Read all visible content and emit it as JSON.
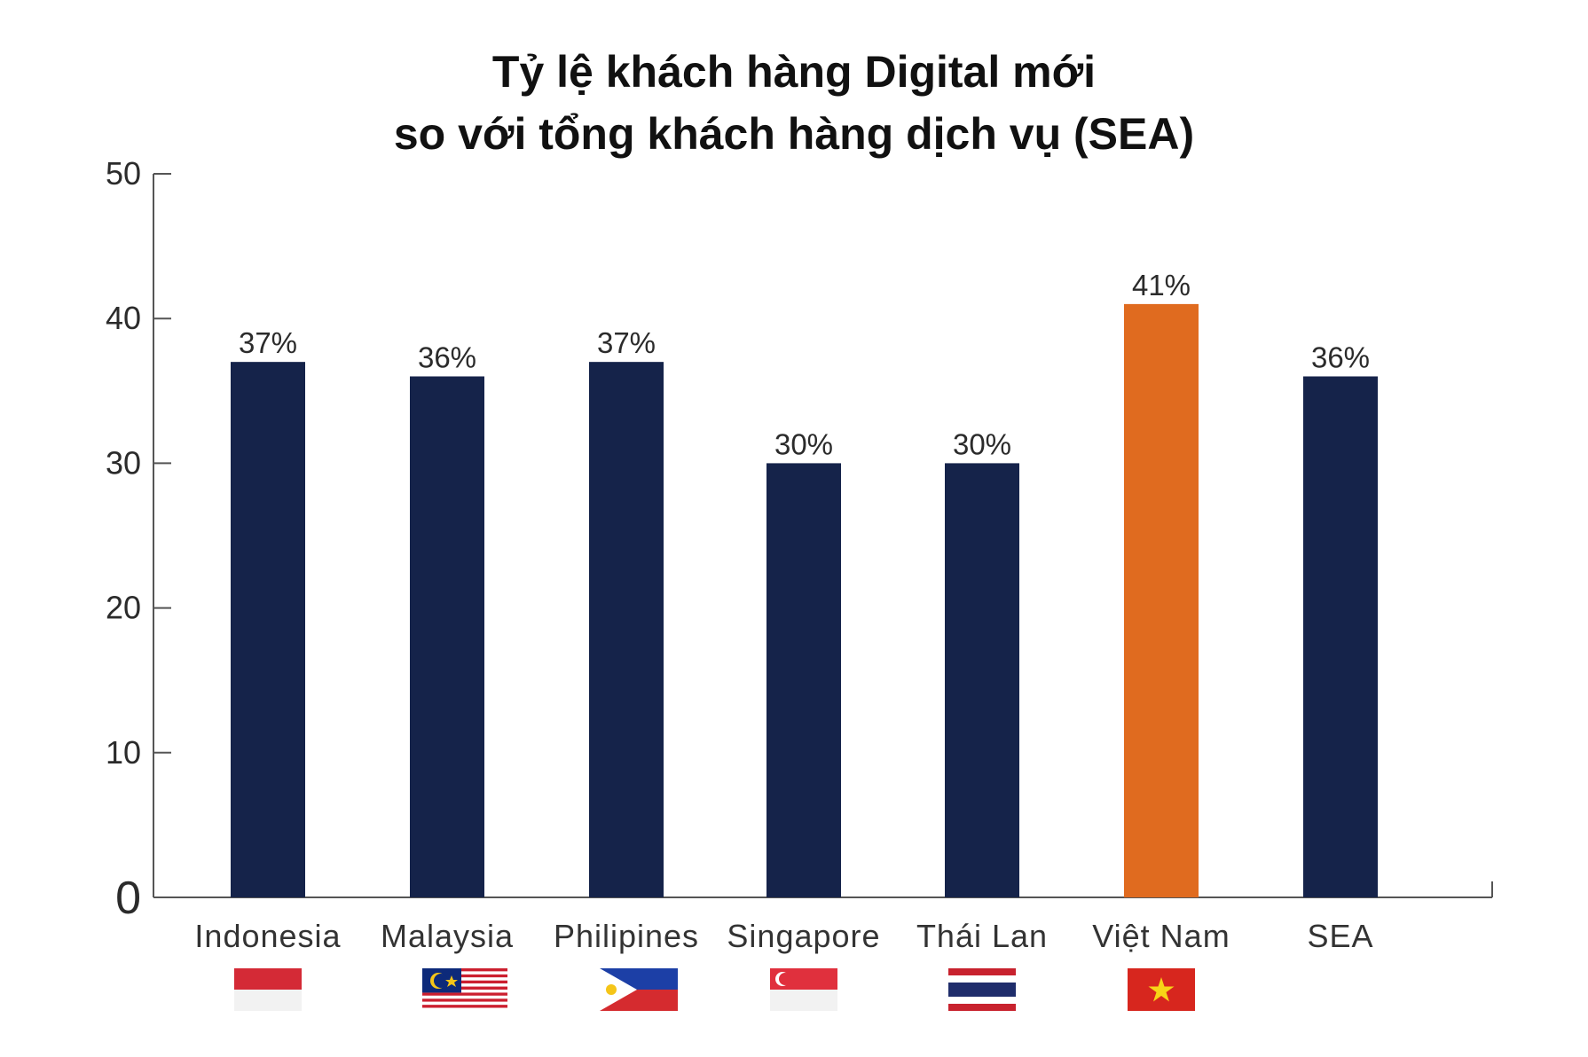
{
  "chart_data": {
    "type": "bar",
    "title_lines": [
      "Tỷ lệ khách hàng Digital mới",
      "so với tổng khách hàng dịch vụ (SEA)"
    ],
    "categories": [
      "Indonesia",
      "Malaysia",
      "Philipines",
      "Singapore",
      "Thái Lan",
      "Việt Nam",
      "SEA"
    ],
    "values": [
      37,
      36,
      37,
      30,
      30,
      41,
      36
    ],
    "data_labels": [
      "37%",
      "36%",
      "37%",
      "30%",
      "30%",
      "41%",
      "36%"
    ],
    "ylim": [
      0,
      50
    ],
    "yticks": [
      0,
      10,
      20,
      30,
      40,
      50
    ],
    "grid": false,
    "legend": "none",
    "colors": {
      "bar": "#15234a",
      "highlight": "#e06b1f",
      "axis": "#555555"
    },
    "highlight_category": "Việt Nam",
    "flag_icons": [
      "indonesia-flag-icon",
      "malaysia-flag-icon",
      "philippines-flag-icon",
      "singapore-flag-icon",
      "thailand-flag-icon",
      "vietnam-flag-icon"
    ]
  }
}
